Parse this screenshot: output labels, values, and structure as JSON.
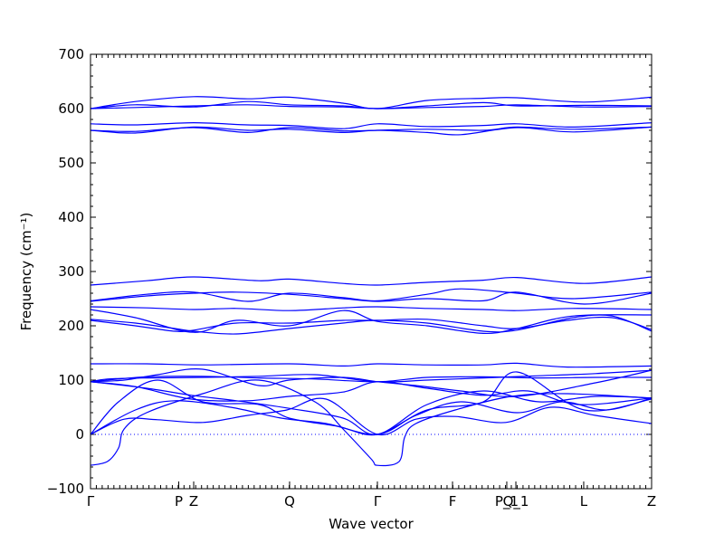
{
  "chart_data": {
    "type": "line",
    "xlabel": "Wave vector",
    "ylabel": "Frequency (cm⁻¹)",
    "ylim": [
      -100,
      700
    ],
    "yticks": [
      -100,
      0,
      100,
      200,
      300,
      400,
      500,
      600,
      700
    ],
    "xlim": [
      0,
      1
    ],
    "high_symmetry_points": [
      {
        "label": "Γ",
        "x": 0.0
      },
      {
        "label": "P",
        "x": 0.1573
      },
      {
        "label": "Z",
        "x": 0.1839
      },
      {
        "label": "Q",
        "x": 0.3548
      },
      {
        "label": "Γ",
        "x": 0.5113
      },
      {
        "label": "F",
        "x": 0.6452
      },
      {
        "label": "P_1",
        "x": 0.7419
      },
      {
        "label": "Q_1",
        "x": 0.7581
      },
      {
        "label": "L",
        "x": 0.879
      },
      {
        "label": "Z",
        "x": 1.0
      }
    ],
    "zero_line": 0,
    "grid": false,
    "line_color": "#0000ff",
    "series": [
      {
        "x": [
          0,
          0.03,
          0.05,
          0.06,
          0.1,
          0.2,
          0.3,
          0.4,
          0.45,
          0.5,
          0.5113,
          0.55,
          0.56,
          0.58,
          0.65,
          0.75,
          0.85,
          1.0
        ],
        "values": [
          -57,
          -50,
          -25,
          10,
          40,
          75,
          100,
          60,
          10,
          -45,
          -57,
          -50,
          -5,
          20,
          45,
          70,
          75,
          67
        ]
      },
      {
        "x": [
          0,
          0.06,
          0.12,
          0.2,
          0.28,
          0.35,
          0.42,
          0.5113,
          0.58,
          0.65,
          0.74,
          0.82,
          0.9,
          1.0
        ],
        "values": [
          0,
          28,
          27,
          22,
          35,
          45,
          65,
          0,
          28,
          33,
          22,
          50,
          35,
          20
        ]
      },
      {
        "x": [
          0,
          0.08,
          0.15,
          0.25,
          0.34,
          0.42,
          0.5113,
          0.58,
          0.66,
          0.76,
          0.84,
          0.92,
          1.0
        ],
        "values": [
          0,
          45,
          62,
          50,
          30,
          20,
          0,
          35,
          60,
          40,
          60,
          45,
          67
        ]
      },
      {
        "x": [
          0,
          0.05,
          0.12,
          0.2,
          0.3,
          0.354,
          0.44,
          0.5113,
          0.6,
          0.7,
          0.76,
          0.88,
          1.0
        ],
        "values": [
          0,
          60,
          100,
          60,
          55,
          30,
          15,
          0,
          45,
          60,
          115,
          45,
          65
        ]
      },
      {
        "x": [
          0,
          0.1,
          0.18,
          0.26,
          0.354,
          0.45,
          0.5113,
          0.6,
          0.7,
          0.8,
          0.9,
          1.0
        ],
        "values": [
          97,
          85,
          72,
          62,
          48,
          30,
          0,
          55,
          80,
          60,
          70,
          67
        ]
      },
      {
        "x": [
          0,
          0.08,
          0.18,
          0.28,
          0.354,
          0.45,
          0.5113,
          0.6,
          0.7,
          0.78,
          0.87,
          1.0
        ],
        "values": [
          97,
          88,
          65,
          62,
          70,
          78,
          97,
          85,
          72,
          80,
          55,
          67
        ]
      },
      {
        "x": [
          0,
          0.06,
          0.12,
          0.2,
          0.3,
          0.354,
          0.45,
          0.5113,
          0.58,
          0.66,
          0.76,
          0.9,
          1.0
        ],
        "values": [
          97,
          100,
          110,
          120,
          90,
          100,
          105,
          97,
          90,
          80,
          70,
          95,
          118
        ]
      },
      {
        "x": [
          0,
          0.03,
          0.1,
          0.2,
          0.3,
          0.4,
          0.5113,
          0.6,
          0.7,
          0.8,
          0.9,
          1.0
        ],
        "values": [
          97,
          102,
          104,
          105,
          107,
          110,
          97,
          100,
          104,
          108,
          112,
          118
        ]
      },
      {
        "x": [
          0,
          0.1,
          0.2,
          0.3,
          0.4,
          0.5113,
          0.6,
          0.7,
          0.8,
          0.9,
          1.0
        ],
        "values": [
          97,
          106,
          107,
          104,
          102,
          97,
          105,
          106,
          104,
          105,
          105
        ]
      },
      {
        "x": [
          0,
          0.1,
          0.2,
          0.354,
          0.45,
          0.5113,
          0.6,
          0.7,
          0.76,
          0.85,
          1.0
        ],
        "values": [
          130,
          130,
          128,
          130,
          126,
          130,
          128,
          128,
          131,
          124,
          126
        ]
      },
      {
        "x": [
          0,
          0.08,
          0.15,
          0.184,
          0.26,
          0.354,
          0.45,
          0.5113,
          0.6,
          0.7,
          0.76,
          0.85,
          0.93,
          1.0
        ],
        "values": [
          210,
          200,
          190,
          192,
          205,
          205,
          210,
          210,
          212,
          200,
          195,
          210,
          215,
          193
        ]
      },
      {
        "x": [
          0,
          0.08,
          0.15,
          0.184,
          0.26,
          0.354,
          0.45,
          0.5113,
          0.6,
          0.7,
          0.76,
          0.86,
          0.93,
          1.0
        ],
        "values": [
          212,
          205,
          195,
          190,
          185,
          195,
          205,
          210,
          205,
          190,
          192,
          215,
          218,
          190
        ]
      },
      {
        "x": [
          0,
          0.08,
          0.184,
          0.26,
          0.354,
          0.45,
          0.5113,
          0.6,
          0.7,
          0.76,
          0.86,
          1.0
        ],
        "values": [
          230,
          215,
          188,
          210,
          200,
          228,
          208,
          200,
          186,
          195,
          218,
          220
        ]
      },
      {
        "x": [
          0,
          0.1,
          0.184,
          0.26,
          0.354,
          0.45,
          0.5113,
          0.6,
          0.7,
          0.76,
          0.86,
          1.0
        ],
        "values": [
          235,
          233,
          230,
          232,
          228,
          233,
          235,
          232,
          230,
          228,
          232,
          230
        ]
      },
      {
        "x": [
          0,
          0.1,
          0.184,
          0.26,
          0.354,
          0.45,
          0.5113,
          0.6,
          0.7,
          0.76,
          0.88,
          1.0
        ],
        "values": [
          245,
          255,
          260,
          262,
          258,
          250,
          245,
          250,
          246,
          262,
          240,
          260
        ]
      },
      {
        "x": [
          0,
          0.1,
          0.184,
          0.28,
          0.354,
          0.45,
          0.5113,
          0.6,
          0.66,
          0.76,
          0.86,
          1.0
        ],
        "values": [
          246,
          258,
          262,
          245,
          260,
          252,
          246,
          258,
          268,
          260,
          250,
          262
        ]
      },
      {
        "x": [
          0,
          0.1,
          0.184,
          0.3,
          0.354,
          0.45,
          0.5113,
          0.6,
          0.7,
          0.76,
          0.88,
          1.0
        ],
        "values": [
          275,
          283,
          290,
          283,
          286,
          278,
          275,
          280,
          284,
          289,
          278,
          290
        ]
      },
      {
        "x": [
          0,
          0.08,
          0.184,
          0.28,
          0.354,
          0.45,
          0.5113,
          0.6,
          0.66,
          0.76,
          0.86,
          1.0
        ],
        "values": [
          560,
          555,
          566,
          560,
          562,
          556,
          560,
          556,
          552,
          565,
          557,
          566
        ]
      },
      {
        "x": [
          0,
          0.08,
          0.184,
          0.28,
          0.354,
          0.45,
          0.5113,
          0.6,
          0.7,
          0.76,
          0.86,
          1.0
        ],
        "values": [
          560,
          558,
          565,
          556,
          565,
          559,
          560,
          562,
          560,
          566,
          562,
          566
        ]
      },
      {
        "x": [
          0,
          0.08,
          0.184,
          0.28,
          0.354,
          0.45,
          0.5113,
          0.6,
          0.7,
          0.76,
          0.86,
          1.0
        ],
        "values": [
          572,
          570,
          574,
          570,
          569,
          563,
          572,
          567,
          569,
          572,
          566,
          574
        ]
      },
      {
        "x": [
          0,
          0.08,
          0.184,
          0.28,
          0.354,
          0.45,
          0.5113,
          0.6,
          0.7,
          0.76,
          0.88,
          1.0
        ],
        "values": [
          600,
          613,
          622,
          618,
          621,
          610,
          600,
          615,
          619,
          620,
          612,
          621
        ]
      },
      {
        "x": [
          0,
          0.08,
          0.184,
          0.28,
          0.354,
          0.45,
          0.5113,
          0.6,
          0.7,
          0.76,
          0.88,
          1.0
        ],
        "values": [
          600,
          607,
          603,
          613,
          607,
          605,
          600,
          605,
          611,
          605,
          606,
          605
        ]
      },
      {
        "x": [
          0,
          0.08,
          0.184,
          0.28,
          0.354,
          0.45,
          0.5113,
          0.6,
          0.7,
          0.76,
          0.88,
          1.0
        ],
        "values": [
          600,
          602,
          605,
          607,
          604,
          603,
          600,
          602,
          604,
          607,
          603,
          604
        ]
      }
    ]
  }
}
